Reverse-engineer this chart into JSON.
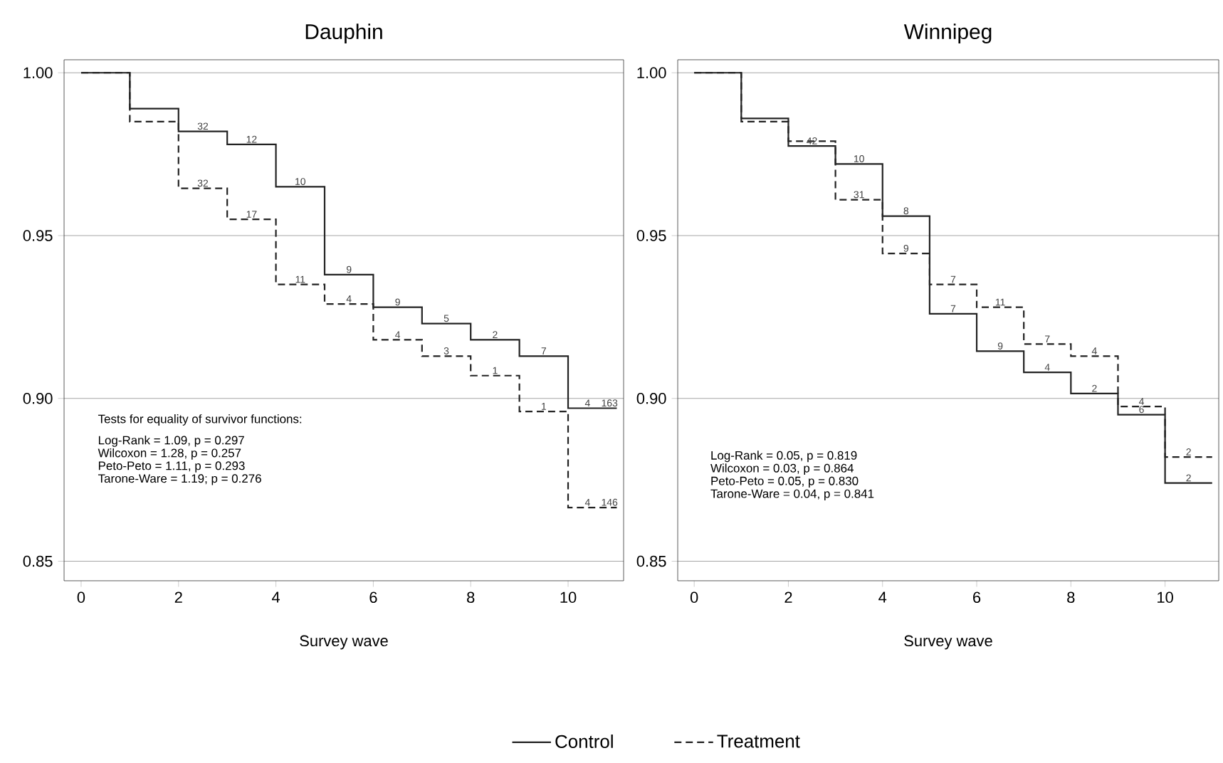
{
  "chart_data": [
    {
      "type": "step",
      "title": "Dauphin",
      "xlabel": "Survey wave",
      "x": [
        0,
        1,
        2,
        3,
        4,
        5,
        6,
        7,
        8,
        9,
        10,
        11
      ],
      "series": [
        {
          "name": "Control",
          "color": "#222222",
          "line_style": "solid",
          "values": [
            1.0,
            0.989,
            0.982,
            0.978,
            0.965,
            0.938,
            0.928,
            0.923,
            0.918,
            0.913,
            0.897,
            0.897
          ]
        },
        {
          "name": "Treatment",
          "color": "#222222",
          "line_style": "dashed",
          "values": [
            1.0,
            0.985,
            0.9645,
            0.955,
            0.935,
            0.929,
            0.918,
            0.913,
            0.907,
            0.896,
            0.8665,
            0.8665
          ]
        }
      ],
      "xlim": [
        -0.35,
        11.14
      ],
      "ylim": [
        0.844,
        1.004
      ],
      "xticks": [
        0,
        2,
        4,
        6,
        8,
        10
      ],
      "yticks": [
        {
          "value": 0.85,
          "label": "0.85"
        },
        {
          "value": 0.9,
          "label": "0.90"
        },
        {
          "value": 0.95,
          "label": "0.95"
        },
        {
          "value": 1.0,
          "label": "1.00"
        }
      ],
      "grid": "y",
      "legend": "bottom",
      "annotations": [
        {
          "text": "32",
          "x": 2.5,
          "y": 0.982
        },
        {
          "text": "12",
          "x": 3.5,
          "y": 0.978
        },
        {
          "text": "10",
          "x": 4.5,
          "y": 0.965
        },
        {
          "text": "9",
          "x": 5.5,
          "y": 0.938
        },
        {
          "text": "9",
          "x": 6.5,
          "y": 0.928
        },
        {
          "text": "5",
          "x": 7.5,
          "y": 0.923
        },
        {
          "text": "2",
          "x": 8.5,
          "y": 0.918
        },
        {
          "text": "7",
          "x": 9.5,
          "y": 0.913
        },
        {
          "text": "4",
          "x": 10.4,
          "y": 0.897
        },
        {
          "text": "163",
          "x": 10.85,
          "y": 0.897
        },
        {
          "text": "32",
          "x": 2.5,
          "y": 0.9645
        },
        {
          "text": "17",
          "x": 3.5,
          "y": 0.955
        },
        {
          "text": "11",
          "x": 4.5,
          "y": 0.935
        },
        {
          "text": "4",
          "x": 5.5,
          "y": 0.929
        },
        {
          "text": "4",
          "x": 6.5,
          "y": 0.918
        },
        {
          "text": "3",
          "x": 7.5,
          "y": 0.913
        },
        {
          "text": "1",
          "x": 8.5,
          "y": 0.907
        },
        {
          "text": "1",
          "x": 9.5,
          "y": 0.896
        },
        {
          "text": "4",
          "x": 10.4,
          "y": 0.8665
        },
        {
          "text": "146",
          "x": 10.85,
          "y": 0.8665
        },
        "Tests for equality of survivor functions:",
        "Log-Rank = 1.09, p = 0.297",
        "Wilcoxon = 1.28, p = 0.257",
        "Peto-Peto = 1.11, p = 0.293",
        "Tarone-Ware = 1.19; p = 0.276"
      ]
    },
    {
      "type": "step",
      "title": "Winnipeg",
      "xlabel": "Survey wave",
      "x": [
        0,
        1,
        2,
        3,
        4,
        5,
        6,
        7,
        8,
        9,
        10,
        11
      ],
      "series": [
        {
          "color": "#222222",
          "line_style": "solid",
          "values": [
            1.0,
            0.986,
            0.9775,
            0.972,
            0.956,
            0.926,
            0.9145,
            0.908,
            0.9015,
            0.895,
            0.874,
            0.874
          ]
        },
        {
          "color": "#222222",
          "line_style": "dashed",
          "values": [
            1.0,
            0.985,
            0.979,
            0.961,
            0.9445,
            0.935,
            0.928,
            0.9167,
            0.913,
            0.8975,
            0.882,
            0.882
          ]
        }
      ],
      "xlim": [
        -0.35,
        11.14
      ],
      "ylim": [
        0.844,
        1.004
      ],
      "xticks": [
        0,
        2,
        4,
        6,
        8,
        10
      ],
      "yticks": [
        {
          "value": 0.85,
          "label": "0.85"
        },
        {
          "value": 0.9,
          "label": "0.90"
        },
        {
          "value": 0.95,
          "label": "0.95"
        },
        {
          "value": 1.0,
          "label": "1.00"
        }
      ],
      "grid": "y",
      "annotations": [
        {
          "text": "42",
          "x": 2.5,
          "y": 0.9775
        },
        {
          "text": "10",
          "x": 3.5,
          "y": 0.972
        },
        {
          "text": "8",
          "x": 4.5,
          "y": 0.956
        },
        {
          "text": "7",
          "x": 5.5,
          "y": 0.926
        },
        {
          "text": "9",
          "x": 6.5,
          "y": 0.9145
        },
        {
          "text": "4",
          "x": 7.5,
          "y": 0.908
        },
        {
          "text": "2",
          "x": 8.5,
          "y": 0.9015
        },
        {
          "text": "6",
          "x": 9.5,
          "y": 0.895
        },
        {
          "text": "2",
          "x": 10.5,
          "y": 0.874
        },
        {
          "text": "31",
          "x": 3.5,
          "y": 0.961
        },
        {
          "text": "9",
          "x": 4.5,
          "y": 0.9445
        },
        {
          "text": "7",
          "x": 5.5,
          "y": 0.935
        },
        {
          "text": "11",
          "x": 6.5,
          "y": 0.928
        },
        {
          "text": "7",
          "x": 7.5,
          "y": 0.9167
        },
        {
          "text": "4",
          "x": 8.5,
          "y": 0.913
        },
        {
          "text": "4",
          "x": 9.5,
          "y": 0.8975
        },
        {
          "text": "2",
          "x": 10.5,
          "y": 0.882
        },
        "Log-Rank = 0.05, p = 0.819",
        "Wilcoxon = 0.03, p = 0.864",
        "Peto-Peto = 0.05, p = 0.830",
        "Tarone-Ware = 0.04,  p = 0.841"
      ]
    }
  ]
}
